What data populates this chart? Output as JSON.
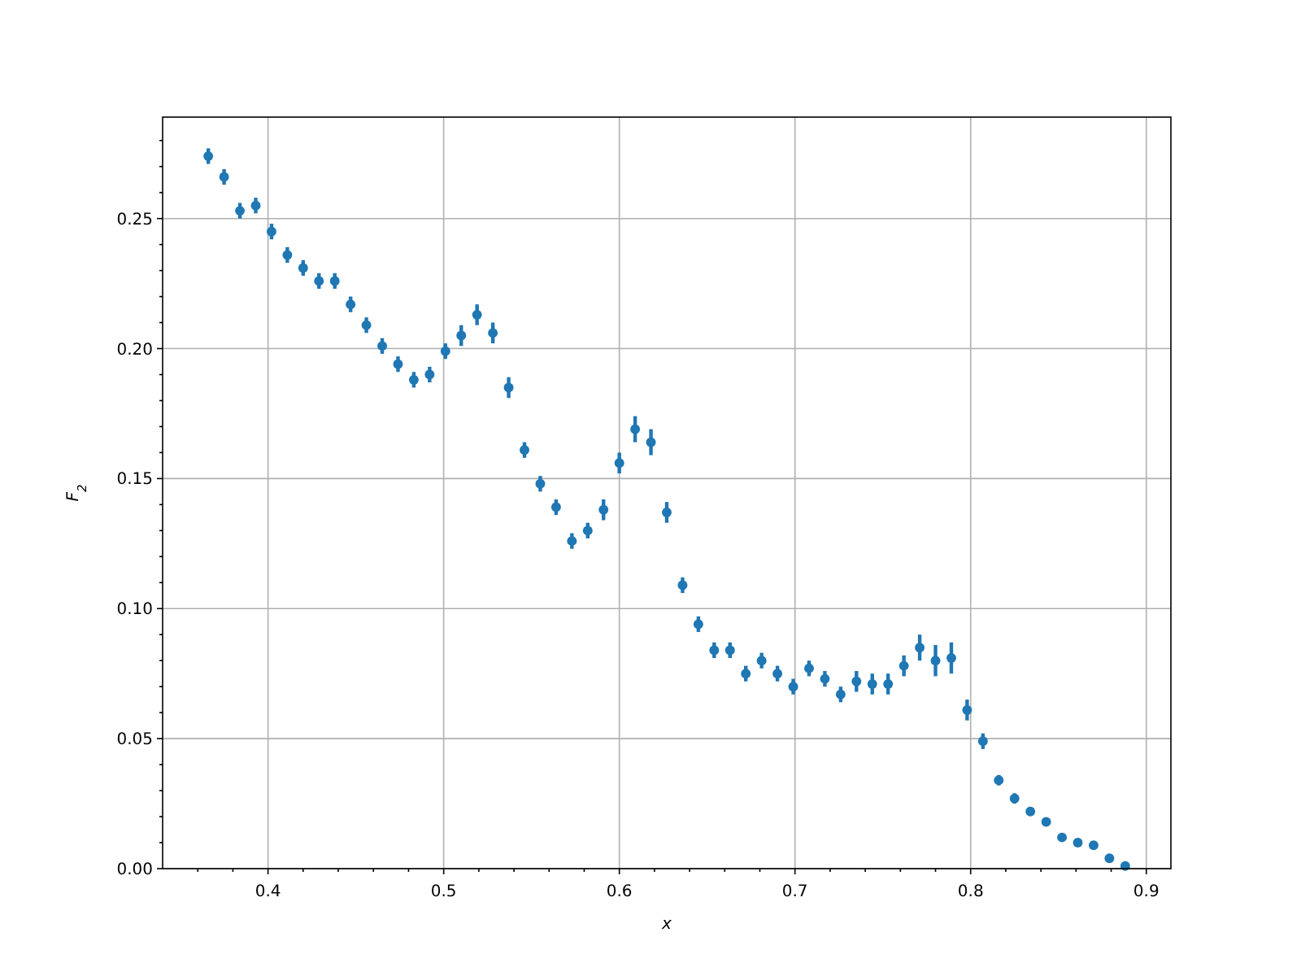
{
  "chart_data": {
    "type": "scatter",
    "xlabel": "x",
    "ylabel": "F$_{2}$",
    "marker": "circle",
    "grid": true,
    "xlim": [
      0.34,
      0.914
    ],
    "ylim": [
      0,
      0.289
    ],
    "xticks": [
      {
        "value": 0.36,
        "label": null
      },
      {
        "value": 0.38,
        "label": null
      },
      0.4,
      {
        "value": 0.42,
        "label": null
      },
      {
        "value": 0.44,
        "label": null
      },
      {
        "value": 0.46,
        "label": null
      },
      {
        "value": 0.48,
        "label": null
      },
      0.5,
      {
        "value": 0.52,
        "label": null
      },
      {
        "value": 0.54,
        "label": null
      },
      {
        "value": 0.56,
        "label": null
      },
      {
        "value": 0.58,
        "label": null
      },
      0.6,
      {
        "value": 0.62,
        "label": null
      },
      {
        "value": 0.64,
        "label": null
      },
      {
        "value": 0.66,
        "label": null
      },
      {
        "value": 0.68,
        "label": null
      },
      0.7,
      {
        "value": 0.72,
        "label": null
      },
      {
        "value": 0.74,
        "label": null
      },
      {
        "value": 0.76,
        "label": null
      },
      {
        "value": 0.78,
        "label": null
      },
      0.8,
      {
        "value": 0.82,
        "label": null
      },
      {
        "value": 0.84,
        "label": null
      },
      {
        "value": 0.86,
        "label": null
      },
      {
        "value": 0.88,
        "label": null
      },
      0.9
    ],
    "yticks": [
      {
        "value": 0,
        "label": "0.00"
      },
      {
        "value": 0.01,
        "label": null
      },
      {
        "value": 0.02,
        "label": null
      },
      {
        "value": 0.03,
        "label": null
      },
      {
        "value": 0.04,
        "label": null
      },
      {
        "value": 0.05,
        "label": "0.05"
      },
      {
        "value": 0.06,
        "label": null
      },
      {
        "value": 0.07,
        "label": null
      },
      {
        "value": 0.08,
        "label": null
      },
      {
        "value": 0.09,
        "label": null
      },
      {
        "value": 0.1,
        "label": "0.10"
      },
      {
        "value": 0.11,
        "label": null
      },
      {
        "value": 0.12,
        "label": null
      },
      {
        "value": 0.13,
        "label": null
      },
      {
        "value": 0.14,
        "label": null
      },
      {
        "value": 0.15,
        "label": "0.15"
      },
      {
        "value": 0.16,
        "label": null
      },
      {
        "value": 0.17,
        "label": null
      },
      {
        "value": 0.18,
        "label": null
      },
      {
        "value": 0.19,
        "label": null
      },
      {
        "value": 0.2,
        "label": "0.20"
      },
      {
        "value": 0.21,
        "label": null
      },
      {
        "value": 0.22,
        "label": null
      },
      {
        "value": 0.23,
        "label": null
      },
      {
        "value": 0.24,
        "label": null
      },
      {
        "value": 0.25,
        "label": "0.25"
      },
      {
        "value": 0.26,
        "label": null
      },
      {
        "value": 0.27,
        "label": null
      },
      {
        "value": 0.28,
        "label": null
      }
    ],
    "series": [
      {
        "color": "#1f77b4",
        "x": [
          0.366,
          0.375,
          0.384,
          0.393,
          0.402,
          0.411,
          0.42,
          0.429,
          0.438,
          0.447,
          0.456,
          0.465,
          0.474,
          0.483,
          0.492,
          0.501,
          0.51,
          0.519,
          0.528,
          0.537,
          0.546,
          0.555,
          0.564,
          0.573,
          0.582,
          0.591,
          0.6,
          0.609,
          0.618,
          0.627,
          0.636,
          0.645,
          0.654,
          0.663,
          0.672,
          0.681,
          0.69,
          0.699,
          0.708,
          0.717,
          0.726,
          0.735,
          0.744,
          0.753,
          0.762,
          0.771,
          0.78,
          0.789,
          0.798,
          0.807,
          0.816,
          0.825,
          0.834,
          0.843,
          0.852,
          0.861,
          0.87,
          0.879,
          0.888
        ],
        "values": [
          0.274,
          0.266,
          0.253,
          0.255,
          0.245,
          0.236,
          0.231,
          0.226,
          0.226,
          0.217,
          0.209,
          0.201,
          0.194,
          0.188,
          0.19,
          0.199,
          0.205,
          0.213,
          0.206,
          0.185,
          0.161,
          0.148,
          0.139,
          0.126,
          0.13,
          0.138,
          0.156,
          0.169,
          0.164,
          0.137,
          0.109,
          0.094,
          0.084,
          0.084,
          0.075,
          0.08,
          0.075,
          0.07,
          0.077,
          0.073,
          0.067,
          0.072,
          0.071,
          0.071,
          0.078,
          0.085,
          0.08,
          0.081,
          0.061,
          0.049,
          0.034,
          0.027,
          0.022,
          0.018,
          0.012,
          0.01,
          0.009,
          0.004,
          0.001
        ],
        "errors": [
          0.003,
          0.003,
          0.003,
          0.003,
          0.003,
          0.003,
          0.003,
          0.003,
          0.003,
          0.003,
          0.003,
          0.003,
          0.003,
          0.003,
          0.003,
          0.003,
          0.004,
          0.004,
          0.004,
          0.004,
          0.003,
          0.003,
          0.003,
          0.003,
          0.003,
          0.004,
          0.004,
          0.005,
          0.005,
          0.004,
          0.003,
          0.003,
          0.003,
          0.003,
          0.003,
          0.003,
          0.003,
          0.003,
          0.003,
          0.003,
          0.003,
          0.004,
          0.004,
          0.004,
          0.004,
          0.005,
          0.006,
          0.006,
          0.004,
          0.003,
          0.002,
          0.002,
          0.001,
          0.001,
          0.001,
          0.001,
          0.001,
          0.001,
          0.001
        ]
      }
    ]
  }
}
